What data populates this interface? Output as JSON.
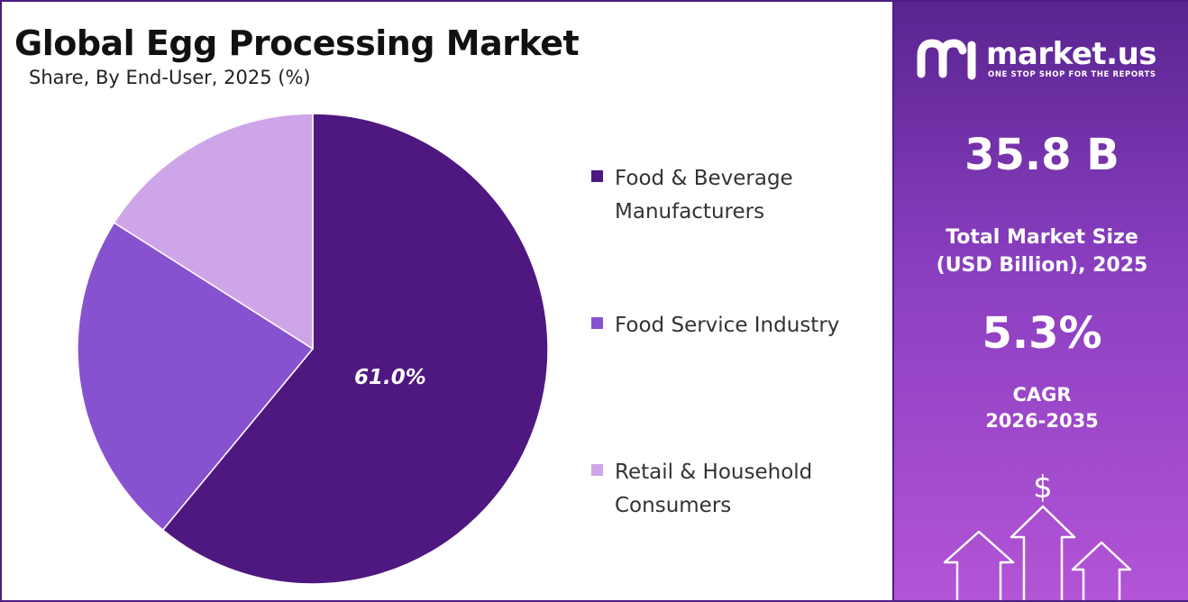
{
  "chart_data": {
    "type": "pie",
    "title": "Global Egg Processing Market",
    "subtitle": "Share, By End-User, 2025 (%)",
    "slices": [
      {
        "label": "Food & Beverage Manufacturers",
        "value": 61.0,
        "display": "61.0%",
        "color": "#4f1780"
      },
      {
        "label": "Food Service Industry",
        "value": 23.0,
        "display": "",
        "color": "#8752d0"
      },
      {
        "label": "Retail & Household Consumers",
        "value": 16.0,
        "display": "",
        "color": "#cfa5ea"
      }
    ],
    "start_angle_deg": 0,
    "direction": "clockwise",
    "legend_position": "right"
  },
  "legend": {
    "item1_line1": "Food & Beverage",
    "item1_line2": "Manufacturers",
    "item2": "Food Service Industry",
    "item3_line1": "Retail & Household",
    "item3_line2": "Consumers"
  },
  "brand": {
    "name": "market.us",
    "tagline": "ONE STOP SHOP FOR THE REPORTS",
    "icon": "market-us-logo-icon"
  },
  "stats": {
    "market_size_value": "35.8 B",
    "market_size_label_line1": "Total Market Size",
    "market_size_label_line2": "(USD Billion), 2025",
    "cagr_value": "5.3%",
    "cagr_label_line1": "CAGR",
    "cagr_label_line2": "2026-2035",
    "currency_symbol": "$"
  },
  "colors": {
    "panel_top": "#5a2491",
    "panel_bottom": "#b354d6",
    "border": "#4c1d84"
  }
}
